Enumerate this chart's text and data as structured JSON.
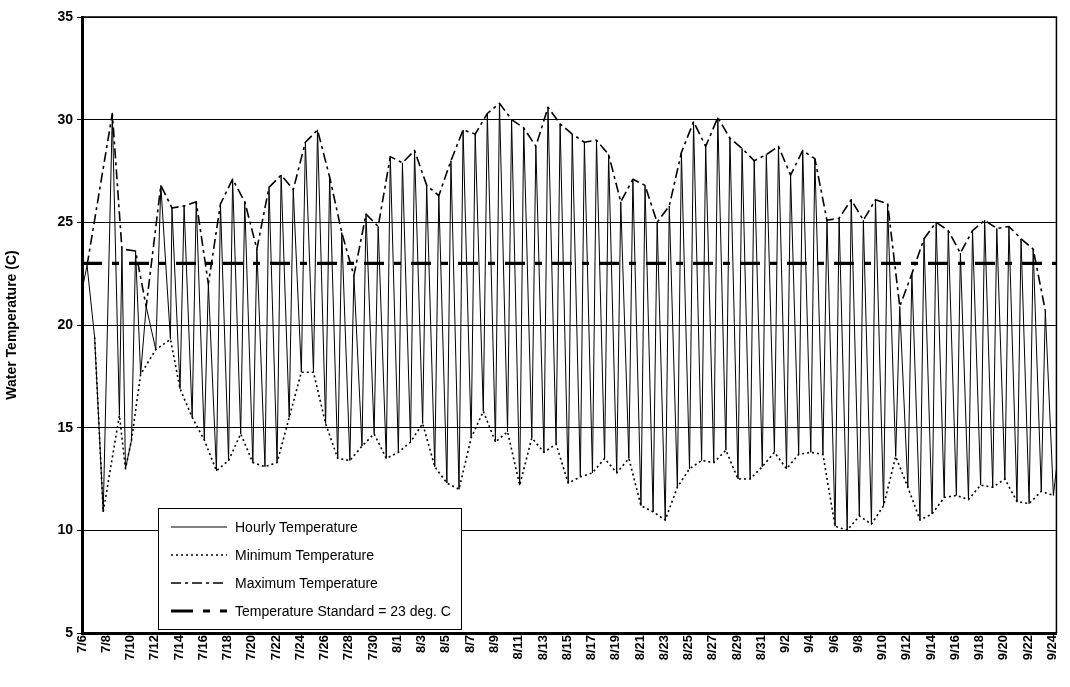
{
  "chart_data": {
    "type": "line",
    "ylabel": "Water Temperature (C)",
    "ylim": [
      5,
      35
    ],
    "yticks": [
      5,
      10,
      15,
      20,
      25,
      30,
      35
    ],
    "xlim": [
      "--07-06",
      "--09-24T08:00"
    ],
    "xticks": [
      {
        "value": "--07-06",
        "label": "7/6"
      },
      {
        "value": "--07-08",
        "label": "7/8"
      },
      {
        "value": "--07-10",
        "label": "7/10"
      },
      {
        "value": "--07-12",
        "label": "7/12"
      },
      {
        "value": "--07-14",
        "label": "7/14"
      },
      {
        "value": "--07-16",
        "label": "7/16"
      },
      {
        "value": "--07-18",
        "label": "7/18"
      },
      {
        "value": "--07-20",
        "label": "7/20"
      },
      {
        "value": "--07-22",
        "label": "7/22"
      },
      {
        "value": "--07-24",
        "label": "7/24"
      },
      {
        "value": "--07-26",
        "label": "7/26"
      },
      {
        "value": "--07-28",
        "label": "7/28"
      },
      {
        "value": "--07-30",
        "label": "7/30"
      },
      {
        "value": "--08-01",
        "label": "8/1"
      },
      {
        "value": "--08-03",
        "label": "8/3"
      },
      {
        "value": "--08-05",
        "label": "8/5"
      },
      {
        "value": "--08-07",
        "label": "8/7"
      },
      {
        "value": "--08-09",
        "label": "8/9"
      },
      {
        "value": "--08-11",
        "label": "8/11"
      },
      {
        "value": "--08-13",
        "label": "8/13"
      },
      {
        "value": "--08-15",
        "label": "8/15"
      },
      {
        "value": "--08-17",
        "label": "8/17"
      },
      {
        "value": "--08-19",
        "label": "8/19"
      },
      {
        "value": "--08-21",
        "label": "8/21"
      },
      {
        "value": "--08-23",
        "label": "8/23"
      },
      {
        "value": "--08-25",
        "label": "8/25"
      },
      {
        "value": "--08-27",
        "label": "8/27"
      },
      {
        "value": "--08-29",
        "label": "8/29"
      },
      {
        "value": "--08-31",
        "label": "8/31"
      },
      {
        "value": "--09-02",
        "label": "9/2"
      },
      {
        "value": "--09-04",
        "label": "9/4"
      },
      {
        "value": "--09-06",
        "label": "9/6"
      },
      {
        "value": "--09-08",
        "label": "9/8"
      },
      {
        "value": "--09-10",
        "label": "9/10"
      },
      {
        "value": "--09-12",
        "label": "9/12"
      },
      {
        "value": "--09-14",
        "label": "9/14"
      },
      {
        "value": "--09-16",
        "label": "9/16"
      },
      {
        "value": "--09-18",
        "label": "9/18"
      },
      {
        "value": "--09-20",
        "label": "9/20"
      },
      {
        "value": "--09-22",
        "label": "9/22"
      },
      {
        "value": "--09-24",
        "label": "9/24"
      }
    ],
    "grid": "y",
    "legend": "bottom left",
    "marker": "none",
    "ref_lines": [
      {
        "axis": "y",
        "value": 23,
        "label": "Temperature Standard = 23 deg. C",
        "color": "#000000",
        "line_style": "dashed"
      }
    ],
    "series": [
      {
        "name": "Hourly Temperature",
        "color": "#000000",
        "line_style": "solid",
        "x": [
          "--07-06T00:00",
          "--07-06T10:00",
          "--07-07T01:00",
          "--07-07T18:00",
          "--07-08T12:00",
          "--07-09T02:00",
          "--07-09T07:00",
          "--07-09T14:00",
          "--07-10T02:00",
          "--07-10T10:00",
          "--07-10T20:00",
          "--07-11T07:00",
          "--07-12T02:00",
          "--07-12T12:00",
          "--07-13T07:00",
          "--07-13T10:00",
          "--07-14T02:00",
          "--07-14T10:00",
          "--07-15T02:00",
          "--07-15T10:00",
          "--07-16T02:00",
          "--07-16T10:00",
          "--07-17T02:00",
          "--07-17T10:00",
          "--07-18T02:00",
          "--07-18T10:00",
          "--07-19T02:00",
          "--07-19T10:00",
          "--07-20T02:00",
          "--07-20T10:00",
          "--07-21T02:00",
          "--07-21T10:00",
          "--07-22T02:00",
          "--07-22T10:00",
          "--07-23T02:00",
          "--07-23T10:00",
          "--07-24T02:00",
          "--07-24T10:00",
          "--07-25T02:00",
          "--07-25T10:00",
          "--07-26T02:00",
          "--07-26T10:00",
          "--07-27T02:00",
          "--07-27T10:00",
          "--07-28T02:00",
          "--07-28T10:00",
          "--07-29T02:00",
          "--07-29T10:00",
          "--07-30T02:00",
          "--07-30T10:00",
          "--07-31T02:00",
          "--07-31T10:00",
          "--08-01T02:00",
          "--08-01T10:00",
          "--08-02T02:00",
          "--08-02T10:00",
          "--08-03T02:00",
          "--08-03T10:00",
          "--08-04T02:00",
          "--08-04T10:00",
          "--08-05T02:00",
          "--08-05T10:00",
          "--08-06T02:00",
          "--08-06T10:00",
          "--08-07T02:00",
          "--08-07T10:00",
          "--08-08T02:00",
          "--08-08T10:00",
          "--08-09T02:00",
          "--08-09T10:00",
          "--08-10T02:00",
          "--08-10T10:00",
          "--08-11T02:00",
          "--08-11T10:00",
          "--08-12T02:00",
          "--08-12T10:00",
          "--08-13T02:00",
          "--08-13T10:00",
          "--08-14T02:00",
          "--08-14T10:00",
          "--08-15T02:00",
          "--08-15T10:00",
          "--08-16T02:00",
          "--08-16T10:00",
          "--08-17T02:00",
          "--08-17T10:00",
          "--08-18T02:00",
          "--08-18T10:00",
          "--08-19T02:00",
          "--08-19T10:00",
          "--08-20T02:00",
          "--08-20T10:00",
          "--08-21T02:00",
          "--08-21T10:00",
          "--08-22T02:00",
          "--08-22T10:00",
          "--08-23T02:00",
          "--08-23T10:00",
          "--08-24T02:00",
          "--08-24T10:00",
          "--08-25T02:00",
          "--08-25T10:00",
          "--08-26T02:00",
          "--08-26T10:00",
          "--08-27T02:00",
          "--08-27T10:00",
          "--08-28T02:00",
          "--08-28T10:00",
          "--08-29T02:00",
          "--08-29T10:00",
          "--08-30T02:00",
          "--08-30T10:00",
          "--08-31T02:00",
          "--08-31T10:00",
          "--09-01T02:00",
          "--09-01T10:00",
          "--09-02T02:00",
          "--09-02T10:00",
          "--09-03T02:00",
          "--09-03T10:00",
          "--09-04T02:00",
          "--09-04T10:00",
          "--09-05T02:00",
          "--09-05T10:00",
          "--09-06T02:00",
          "--09-06T10:00",
          "--09-07T02:00",
          "--09-07T10:00",
          "--09-08T02:00",
          "--09-08T10:00",
          "--09-09T02:00",
          "--09-09T10:00",
          "--09-10T02:00",
          "--09-10T10:00",
          "--09-11T02:00",
          "--09-11T10:00",
          "--09-12T02:00",
          "--09-12T10:00",
          "--09-13T02:00",
          "--09-13T10:00",
          "--09-14T02:00",
          "--09-14T10:00",
          "--09-15T02:00",
          "--09-15T10:00",
          "--09-16T02:00",
          "--09-16T10:00",
          "--09-17T02:00",
          "--09-17T10:00",
          "--09-18T02:00",
          "--09-18T10:00",
          "--09-19T02:00",
          "--09-19T10:00",
          "--09-20T02:00",
          "--09-20T10:00",
          "--09-21T02:00",
          "--09-21T10:00",
          "--09-22T02:00",
          "--09-22T10:00",
          "--09-23T02:00",
          "--09-23T10:00",
          "--09-24T02:00",
          "--09-24T08:00"
        ],
        "values": [
          21.7,
          22.9,
          19.4,
          10.9,
          30.3,
          15.6,
          23.7,
          13.0,
          14.4,
          23.6,
          17.6,
          20.9,
          18.8,
          26.8,
          19.3,
          25.7,
          16.9,
          25.8,
          15.5,
          26.0,
          14.4,
          22.0,
          12.9,
          25.9,
          13.4,
          27.1,
          14.7,
          26.0,
          13.3,
          23.7,
          13.1,
          26.7,
          13.3,
          27.3,
          15.5,
          26.6,
          17.7,
          28.9,
          17.7,
          29.5,
          15.2,
          27.2,
          13.5,
          24.5,
          13.4,
          22.4,
          14.1,
          25.4,
          14.7,
          24.8,
          13.5,
          28.2,
          13.8,
          27.9,
          14.3,
          28.5,
          15.2,
          26.8,
          13.1,
          26.3,
          12.3,
          28.0,
          12.0,
          29.5,
          14.5,
          29.3,
          15.8,
          30.3,
          14.3,
          30.8,
          14.8,
          30.0,
          12.2,
          29.6,
          14.5,
          28.7,
          13.8,
          30.6,
          14.2,
          29.8,
          12.3,
          29.3,
          12.6,
          28.9,
          12.8,
          29.0,
          13.5,
          28.3,
          12.8,
          26.0,
          13.5,
          27.1,
          11.2,
          26.8,
          10.9,
          25.0,
          10.5,
          25.8,
          12.1,
          28.4,
          13.0,
          29.9,
          13.4,
          28.7,
          13.3,
          30.1,
          13.9,
          29.1,
          12.5,
          28.6,
          12.5,
          28.0,
          13.1,
          28.3,
          13.8,
          28.7,
          13.0,
          27.3,
          13.7,
          28.5,
          13.8,
          28.1,
          13.7,
          25.1,
          10.2,
          25.2,
          10.0,
          26.1,
          10.7,
          25.1,
          10.3,
          26.1,
          11.2,
          25.9,
          13.6,
          20.9,
          12.1,
          22.5,
          10.5,
          24.2,
          10.8,
          25.0,
          11.6,
          24.6,
          11.7,
          23.5,
          11.5,
          24.6,
          12.2,
          25.1,
          12.1,
          24.7,
          12.5,
          24.8,
          11.4,
          24.2,
          11.3,
          23.7,
          11.9,
          20.7,
          11.7,
          13.0
        ]
      },
      {
        "name": "Minimum Temperature",
        "color": "#000000",
        "line_style": "dotted",
        "x": [
          "--07-07T01:00",
          "--07-07T18:00",
          "--07-09T02:00",
          "--07-09T14:00",
          "--07-10T02:00",
          "--07-10T20:00",
          "--07-12T02:00",
          "--07-13T07:00",
          "--07-14T02:00",
          "--07-15T02:00",
          "--07-16T02:00",
          "--07-17T02:00",
          "--07-18T02:00",
          "--07-19T02:00",
          "--07-20T02:00",
          "--07-21T02:00",
          "--07-22T02:00",
          "--07-23T02:00",
          "--07-24T02:00",
          "--07-25T02:00",
          "--07-26T02:00",
          "--07-27T02:00",
          "--07-28T02:00",
          "--07-29T02:00",
          "--07-30T02:00",
          "--07-31T02:00",
          "--08-01T02:00",
          "--08-02T02:00",
          "--08-03T02:00",
          "--08-04T02:00",
          "--08-05T02:00",
          "--08-06T02:00",
          "--08-07T02:00",
          "--08-08T02:00",
          "--08-09T02:00",
          "--08-10T02:00",
          "--08-11T02:00",
          "--08-12T02:00",
          "--08-13T02:00",
          "--08-14T02:00",
          "--08-15T02:00",
          "--08-16T02:00",
          "--08-17T02:00",
          "--08-18T02:00",
          "--08-19T02:00",
          "--08-20T02:00",
          "--08-21T02:00",
          "--08-22T02:00",
          "--08-23T02:00",
          "--08-24T02:00",
          "--08-25T02:00",
          "--08-26T02:00",
          "--08-27T02:00",
          "--08-28T02:00",
          "--08-29T02:00",
          "--08-30T02:00",
          "--08-31T02:00",
          "--09-01T02:00",
          "--09-02T02:00",
          "--09-03T02:00",
          "--09-04T02:00",
          "--09-05T02:00",
          "--09-06T02:00",
          "--09-07T02:00",
          "--09-08T02:00",
          "--09-09T02:00",
          "--09-10T02:00",
          "--09-11T02:00",
          "--09-12T02:00",
          "--09-13T02:00",
          "--09-14T02:00",
          "--09-15T02:00",
          "--09-16T02:00",
          "--09-17T02:00",
          "--09-18T02:00",
          "--09-19T02:00",
          "--09-20T02:00",
          "--09-21T02:00",
          "--09-22T02:00",
          "--09-23T02:00",
          "--09-24T02:00"
        ],
        "values": [
          19.4,
          10.9,
          15.6,
          13.0,
          14.4,
          17.6,
          18.8,
          19.3,
          16.9,
          15.5,
          14.4,
          12.9,
          13.4,
          14.7,
          13.3,
          13.1,
          13.3,
          15.5,
          17.7,
          17.7,
          15.2,
          13.5,
          13.4,
          14.1,
          14.7,
          13.5,
          13.8,
          14.3,
          15.2,
          13.1,
          12.3,
          12.0,
          14.5,
          15.8,
          14.3,
          14.8,
          12.2,
          14.5,
          13.8,
          14.2,
          12.3,
          12.6,
          12.8,
          13.5,
          12.8,
          13.5,
          11.2,
          10.9,
          10.5,
          12.1,
          13.0,
          13.4,
          13.3,
          13.9,
          12.5,
          12.5,
          13.1,
          13.8,
          13.0,
          13.7,
          13.8,
          13.7,
          10.2,
          10.0,
          10.7,
          10.3,
          11.2,
          13.6,
          12.1,
          10.5,
          10.8,
          11.6,
          11.7,
          11.5,
          12.2,
          12.1,
          12.5,
          11.4,
          11.3,
          11.9,
          11.7
        ]
      },
      {
        "name": "Maximum Temperature",
        "color": "#000000",
        "line_style": "dashed",
        "x": [
          "--07-06T10:00",
          "--07-08T12:00",
          "--07-09T07:00",
          "--07-10T10:00",
          "--07-11T07:00",
          "--07-12T12:00",
          "--07-13T10:00",
          "--07-14T10:00",
          "--07-15T10:00",
          "--07-16T10:00",
          "--07-17T10:00",
          "--07-18T10:00",
          "--07-19T10:00",
          "--07-20T10:00",
          "--07-21T10:00",
          "--07-22T10:00",
          "--07-23T10:00",
          "--07-24T10:00",
          "--07-25T10:00",
          "--07-26T10:00",
          "--07-27T10:00",
          "--07-28T10:00",
          "--07-29T10:00",
          "--07-30T10:00",
          "--07-31T10:00",
          "--08-01T10:00",
          "--08-02T10:00",
          "--08-03T10:00",
          "--08-04T10:00",
          "--08-05T10:00",
          "--08-06T10:00",
          "--08-07T10:00",
          "--08-08T10:00",
          "--08-09T10:00",
          "--08-10T10:00",
          "--08-11T10:00",
          "--08-12T10:00",
          "--08-13T10:00",
          "--08-14T10:00",
          "--08-15T10:00",
          "--08-16T10:00",
          "--08-17T10:00",
          "--08-18T10:00",
          "--08-19T10:00",
          "--08-20T10:00",
          "--08-21T10:00",
          "--08-22T10:00",
          "--08-23T10:00",
          "--08-24T10:00",
          "--08-25T10:00",
          "--08-26T10:00",
          "--08-27T10:00",
          "--08-28T10:00",
          "--08-29T10:00",
          "--08-30T10:00",
          "--08-31T10:00",
          "--09-01T10:00",
          "--09-02T10:00",
          "--09-03T10:00",
          "--09-04T10:00",
          "--09-05T10:00",
          "--09-06T10:00",
          "--09-07T10:00",
          "--09-08T10:00",
          "--09-09T10:00",
          "--09-10T10:00",
          "--09-11T10:00",
          "--09-12T10:00",
          "--09-13T10:00",
          "--09-14T10:00",
          "--09-15T10:00",
          "--09-16T10:00",
          "--09-17T10:00",
          "--09-18T10:00",
          "--09-19T10:00",
          "--09-20T10:00",
          "--09-21T10:00",
          "--09-22T10:00",
          "--09-23T10:00"
        ],
        "values": [
          22.9,
          30.3,
          23.7,
          23.6,
          20.9,
          26.8,
          25.7,
          25.8,
          26.0,
          22.0,
          25.9,
          27.1,
          26.0,
          23.7,
          26.7,
          27.3,
          26.6,
          28.9,
          29.5,
          27.2,
          24.5,
          22.4,
          25.4,
          24.8,
          28.2,
          27.9,
          28.5,
          26.8,
          26.3,
          28.0,
          29.5,
          29.3,
          30.3,
          30.8,
          30.0,
          29.6,
          28.7,
          30.6,
          29.8,
          29.3,
          28.9,
          29.0,
          28.3,
          26.0,
          27.1,
          26.8,
          25.0,
          25.8,
          28.4,
          29.9,
          28.7,
          30.1,
          29.1,
          28.6,
          28.0,
          28.3,
          28.7,
          27.3,
          28.5,
          28.1,
          25.1,
          25.2,
          26.1,
          25.1,
          26.1,
          25.9,
          20.9,
          22.5,
          24.2,
          25.0,
          24.6,
          23.5,
          24.6,
          25.1,
          24.7,
          24.8,
          24.2,
          23.7,
          20.7
        ]
      }
    ]
  }
}
